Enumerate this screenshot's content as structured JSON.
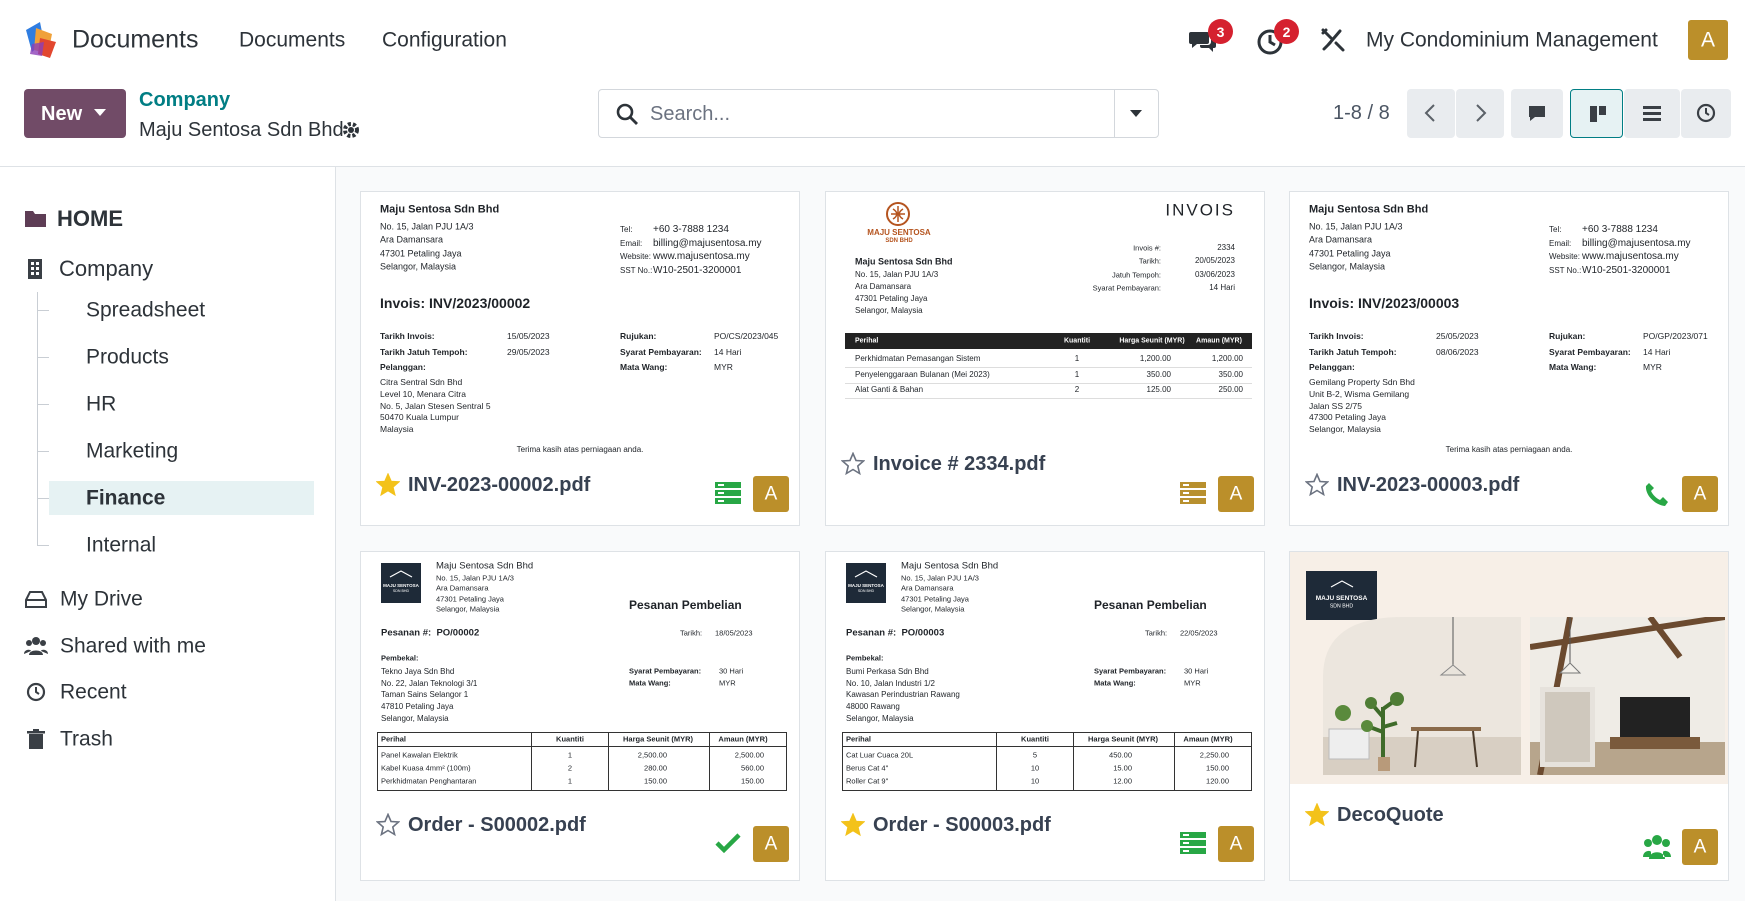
{
  "navbar": {
    "app_name": "Documents",
    "menu": [
      "Documents",
      "Configuration"
    ],
    "message_count": "3",
    "activity_count": "2",
    "company": "My Condominium Management",
    "avatar": "A"
  },
  "control_panel": {
    "new_button": "New",
    "breadcrumb": "Company",
    "record": "Maju Sentosa Sdn Bhd",
    "search_placeholder": "Search...",
    "pager": "1-8 / 8"
  },
  "sidebar": {
    "home": "HOME",
    "company": "Company",
    "folders": [
      "Spreadsheet",
      "Products",
      "HR",
      "Marketing",
      "Finance",
      "Internal"
    ],
    "selected_folder": "Finance",
    "sections": [
      "My Drive",
      "Shared with me",
      "Recent",
      "Trash"
    ]
  },
  "cards": [
    {
      "name": "INV-2023-00002.pdf",
      "starred": true,
      "avatar": "A",
      "preview": {
        "kind": "invoice",
        "company": "Maju Sentosa Sdn Bhd",
        "address": [
          "No. 15, Jalan PJU 1A/3",
          "Ara Damansara",
          "47301 Petaling Jaya",
          "Selangor, Malaysia"
        ],
        "contact": [
          [
            "Tel:",
            "+60 3-7888 1234"
          ],
          [
            "Email:",
            "billing@majusentosa.my"
          ],
          [
            "Website:",
            "www.majusentosa.my"
          ],
          [
            "SST No.:",
            "W10-2501-3200001"
          ]
        ],
        "title": "Invois: INV/2023/00002",
        "left_fields": [
          [
            "Tarikh Invois:",
            "15/05/2023"
          ],
          [
            "Tarikh Jatuh Tempoh:",
            "29/05/2023"
          ]
        ],
        "right_fields": [
          [
            "Rujukan:",
            "PO/CS/2023/045"
          ],
          [
            "Syarat Pembayaran:",
            "14 Hari"
          ],
          [
            "Mata Wang:",
            "MYR"
          ]
        ],
        "customer_label": "Pelanggan:",
        "customer": [
          "Citra Sentral Sdn Bhd",
          "Level 10, Menara Citra",
          "No. 5, Jalan Stesen Sentral 5",
          "50470 Kuala Lumpur",
          "Malaysia"
        ],
        "footer": "Terima kasih atas perniagaan anda."
      }
    },
    {
      "name": "Invoice # 2334.pdf",
      "starred": false,
      "avatar": "A",
      "preview": {
        "kind": "invois",
        "logo": [
          "MAJU SENTOSA",
          "SDN BHD"
        ],
        "heading": "INVOIS",
        "fields": [
          [
            "Invois #:",
            "2334"
          ],
          [
            "Tarikh:",
            "20/05/2023"
          ],
          [
            "Jatuh Tempoh:",
            "03/06/2023"
          ],
          [
            "Syarat Pembayaran:",
            "14 Hari"
          ]
        ],
        "company": "Maju Sentosa Sdn Bhd",
        "address": [
          "No. 15, Jalan PJU 1A/3",
          "Ara Damansara",
          "47301 Petaling Jaya",
          "Selangor, Malaysia"
        ],
        "table_header": [
          "Perihal",
          "Kuantiti",
          "Harga Seunit (MYR)",
          "Amaun (MYR)"
        ],
        "rows": [
          [
            "Perkhidmatan Pemasangan Sistem",
            "1",
            "1,200.00",
            "1,200.00"
          ],
          [
            "Penyelenggaraan Bulanan (Mei 2023)",
            "1",
            "350.00",
            "350.00"
          ],
          [
            "Alat Ganti & Bahan",
            "2",
            "125.00",
            "250.00"
          ]
        ]
      }
    },
    {
      "name": "INV-2023-00003.pdf",
      "starred": false,
      "avatar": "A",
      "preview": {
        "kind": "invoice",
        "company": "Maju Sentosa Sdn Bhd",
        "address": [
          "No. 15, Jalan PJU 1A/3",
          "Ara Damansara",
          "47301 Petaling Jaya",
          "Selangor, Malaysia"
        ],
        "contact": [
          [
            "Tel:",
            "+60 3-7888 1234"
          ],
          [
            "Email:",
            "billing@majusentosa.my"
          ],
          [
            "Website:",
            "www.majusentosa.my"
          ],
          [
            "SST No.:",
            "W10-2501-3200001"
          ]
        ],
        "title": "Invois: INV/2023/00003",
        "left_fields": [
          [
            "Tarikh Invois:",
            "25/05/2023"
          ],
          [
            "Tarikh Jatuh Tempoh:",
            "08/06/2023"
          ]
        ],
        "right_fields": [
          [
            "Rujukan:",
            "PO/GP/2023/071"
          ],
          [
            "Syarat Pembayaran:",
            "14 Hari"
          ],
          [
            "Mata Wang:",
            "MYR"
          ]
        ],
        "customer_label": "Pelanggan:",
        "customer": [
          "Gemilang Property Sdn Bhd",
          "Unit B-2, Wisma Gemilang",
          "Jalan SS 2/75",
          "47300 Petaling Jaya",
          "Selangor, Malaysia"
        ],
        "footer": "Terima kasih atas perniagaan anda."
      }
    },
    {
      "name": "Order - S00002.pdf",
      "starred": false,
      "avatar": "A",
      "preview": {
        "kind": "po",
        "logo": [
          "MAJU SENTOSA",
          "SDN BHD"
        ],
        "company": "Maju Sentosa Sdn Bhd",
        "address": [
          "No. 15, Jalan PJU 1A/3",
          "Ara Damansara",
          "47301 Petaling Jaya",
          "Selangor, Malaysia"
        ],
        "heading": "Pesanan Pembelian",
        "title": "Pesanan #:  PO/00002",
        "date": [
          "Tarikh:",
          "18/05/2023"
        ],
        "vendor_label": "Pembekal:",
        "vendor": [
          "Tekno Jaya Sdn Bhd",
          "No. 22, Jalan Teknologi 3/1",
          "Taman Sains Selangor 1",
          "47810 Petaling Jaya",
          "Selangor, Malaysia"
        ],
        "fields": [
          [
            "Syarat Pembayaran:",
            "30 Hari"
          ],
          [
            "Mata Wang:",
            "MYR"
          ]
        ],
        "table_header": [
          "Perihal",
          "Kuantiti",
          "Harga Seunit (MYR)",
          "Amaun (MYR)"
        ],
        "rows": [
          [
            "Panel Kawalan Elektrik",
            "1",
            "2,500.00",
            "2,500.00"
          ],
          [
            "Kabel Kuasa 4mm² (100m)",
            "2",
            "280.00",
            "560.00"
          ],
          [
            "Perkhidmatan Penghantaran",
            "1",
            "150.00",
            "150.00"
          ]
        ]
      }
    },
    {
      "name": "Order - S00003.pdf",
      "starred": true,
      "avatar": "A",
      "preview": {
        "kind": "po",
        "logo": [
          "MAJU SENTOSA",
          "SDN BHD"
        ],
        "company": "Maju Sentosa Sdn Bhd",
        "address": [
          "No. 15, Jalan PJU 1A/3",
          "Ara Damansara",
          "47301 Petaling Jaya",
          "Selangor, Malaysia"
        ],
        "heading": "Pesanan Pembelian",
        "title": "Pesanan #:  PO/00003",
        "date": [
          "Tarikh:",
          "22/05/2023"
        ],
        "vendor_label": "Pembekal:",
        "vendor": [
          "Bumi Perkasa Sdn Bhd",
          "No. 10, Jalan Industri 1/2",
          "Kawasan Perindustrian Rawang",
          "48000 Rawang",
          "Selangor, Malaysia"
        ],
        "fields": [
          [
            "Syarat Pembayaran:",
            "30 Hari"
          ],
          [
            "Mata Wang:",
            "MYR"
          ]
        ],
        "table_header": [
          "Perihal",
          "Kuantiti",
          "Harga Seunit (MYR)",
          "Amaun (MYR)"
        ],
        "rows": [
          [
            "Cat Luar Cuaca 20L",
            "5",
            "450.00",
            "2,250.00"
          ],
          [
            "Berus Cat 4\"",
            "10",
            "15.00",
            "150.00"
          ],
          [
            "Roller Cat 9\"",
            "10",
            "12.00",
            "120.00"
          ]
        ]
      }
    },
    {
      "name": "DecoQuote",
      "starred": true,
      "avatar": "A",
      "preview": {
        "kind": "image",
        "logo": [
          "MAJU SENTOSA",
          "SDN BHD"
        ]
      }
    }
  ]
}
